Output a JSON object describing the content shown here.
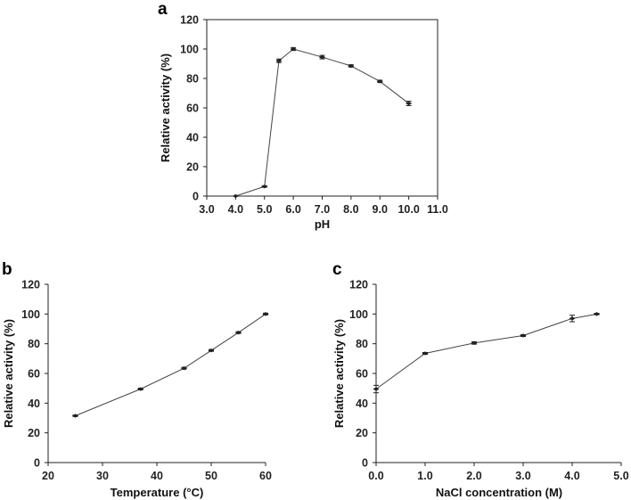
{
  "chart_data": [
    {
      "panel": "a",
      "type": "line",
      "title": "",
      "xlabel": "pH",
      "ylabel": "Relative activity (%)",
      "xlim": [
        3.0,
        11.0
      ],
      "ylim": [
        0,
        120
      ],
      "xticks": [
        "3.0",
        "4.0",
        "5.0",
        "6.0",
        "7.0",
        "8.0",
        "9.0",
        "10.0",
        "11.0"
      ],
      "yticks": [
        "0",
        "20",
        "40",
        "60",
        "80",
        "100",
        "120"
      ],
      "frame": "box",
      "grid": false,
      "series": [
        {
          "x": [
            4.0,
            5.0,
            5.5,
            6.0,
            7.0,
            8.0,
            9.0,
            10.0
          ],
          "y": [
            0,
            6.5,
            92,
            100,
            94.5,
            88.5,
            78,
            63
          ],
          "err": [
            0,
            0.5,
            1.2,
            1.0,
            1.2,
            0.8,
            0.8,
            1.5
          ]
        }
      ]
    },
    {
      "panel": "b",
      "type": "line",
      "title": "",
      "xlabel": "Temperature (°C)",
      "ylabel": "Relative activity (%)",
      "xlim": [
        20,
        60
      ],
      "ylim": [
        0,
        120
      ],
      "xticks": [
        "20",
        "30",
        "40",
        "50",
        "60"
      ],
      "yticks": [
        "0",
        "20",
        "40",
        "60",
        "80",
        "100",
        "120"
      ],
      "frame": "axes",
      "grid": false,
      "series": [
        {
          "x": [
            25,
            37,
            45,
            50,
            55,
            60
          ],
          "y": [
            31.5,
            49.5,
            63.5,
            75.5,
            87.5,
            100
          ],
          "err": [
            0.5,
            0.6,
            0.6,
            0.6,
            0.6,
            0.6
          ]
        }
      ]
    },
    {
      "panel": "c",
      "type": "line",
      "title": "",
      "xlabel": "NaCl concentration (M)",
      "ylabel": "Relative activity (%)",
      "xlim": [
        0.0,
        5.0
      ],
      "ylim": [
        0,
        120
      ],
      "xticks": [
        "0.0",
        "1.0",
        "2.0",
        "3.0",
        "4.0",
        "5.0"
      ],
      "yticks": [
        "0",
        "20",
        "40",
        "60",
        "80",
        "100",
        "120"
      ],
      "frame": "axes",
      "grid": false,
      "series": [
        {
          "x": [
            0.0,
            1.0,
            2.0,
            3.0,
            4.0,
            4.5
          ],
          "y": [
            49.5,
            73.5,
            80.5,
            85.5,
            97,
            100
          ],
          "err": [
            2.5,
            0.6,
            0.8,
            0.6,
            2.2,
            0.5
          ]
        }
      ]
    }
  ]
}
